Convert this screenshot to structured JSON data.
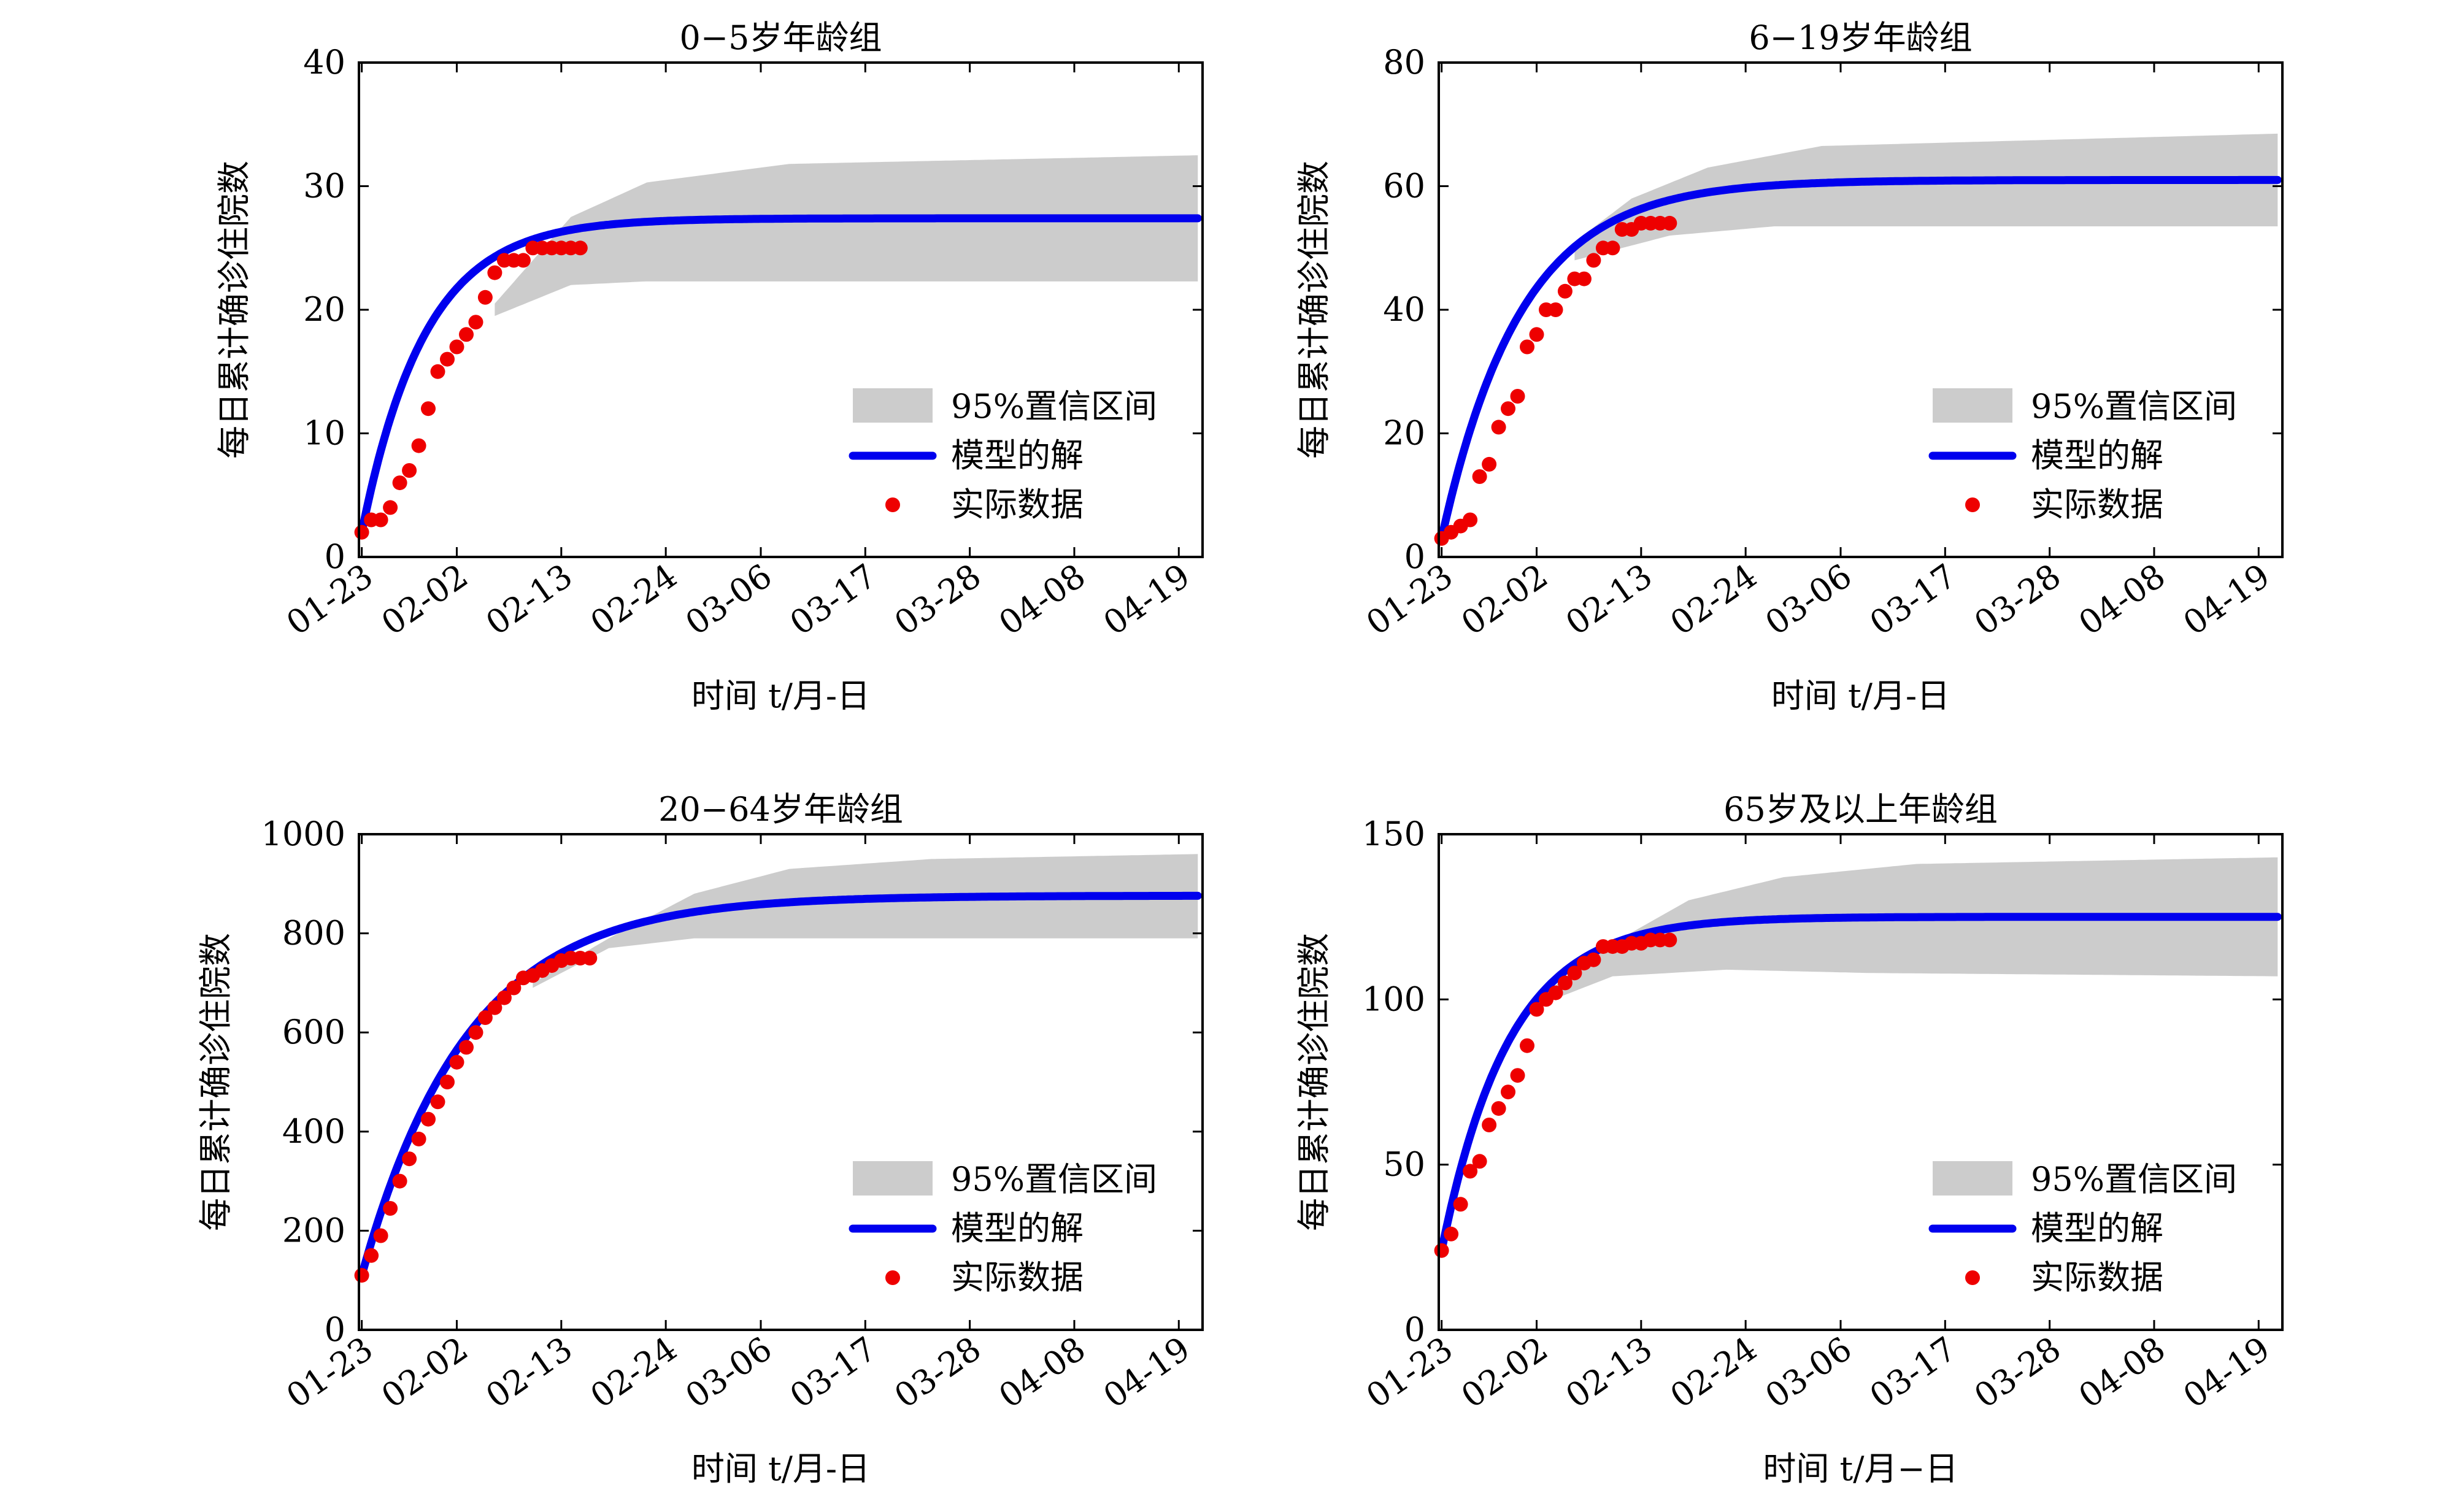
{
  "figure": {
    "legend_labels": {
      "band": "95%置信区间",
      "model": "模型的解",
      "data": "实际数据"
    },
    "colors": {
      "band": "#cccccc",
      "model": "#0000ee",
      "data": "#ee0000",
      "axis": "#000000"
    }
  },
  "chart_data": [
    {
      "type": "line",
      "title": "0−5岁年龄组",
      "xlabel": "时间 t/月-日",
      "ylabel": "每日累计确诊住院数",
      "x_tick_labels": [
        "01-23",
        "02-02",
        "02-13",
        "02-24",
        "03-06",
        "03-17",
        "03-28",
        "04-08",
        "04-19"
      ],
      "x_tick_days": [
        0,
        10,
        21,
        32,
        42,
        53,
        64,
        75,
        86
      ],
      "x_range_days": [
        -0.3,
        88.5
      ],
      "y_ticks": [
        0,
        10,
        20,
        30,
        40
      ],
      "ylim": [
        0,
        40
      ],
      "legend_position": "lower-right",
      "model": {
        "start": 2.0,
        "final": 27.4,
        "k": 0.15,
        "day_end": 88.0
      },
      "band": {
        "day_start": 14.0,
        "lower": [
          [
            14,
            19.5
          ],
          [
            22,
            22.0
          ],
          [
            30,
            22.3
          ],
          [
            88,
            22.3
          ]
        ],
        "upper": [
          [
            14,
            20.5
          ],
          [
            22,
            27.5
          ],
          [
            30,
            30.3
          ],
          [
            45,
            31.8
          ],
          [
            88,
            32.5
          ]
        ]
      },
      "observed": {
        "days": [
          0,
          1,
          2,
          3,
          4,
          5,
          6,
          7,
          8,
          9,
          10,
          11,
          12,
          13,
          14,
          15,
          16,
          17,
          18,
          19,
          20,
          21,
          22,
          23
        ],
        "values": [
          2,
          3,
          3,
          4,
          6,
          7,
          9,
          12,
          15,
          16,
          17,
          18,
          19,
          21,
          23,
          24,
          24,
          24,
          25,
          25,
          25,
          25,
          25,
          25
        ]
      }
    },
    {
      "type": "line",
      "title": "6−19岁年龄组",
      "xlabel": "时间 t/月-日",
      "ylabel": "每日累计确诊住院数",
      "x_tick_labels": [
        "01-23",
        "02-02",
        "02-13",
        "02-24",
        "03-06",
        "03-17",
        "03-28",
        "04-08",
        "04-19"
      ],
      "x_tick_days": [
        0,
        10,
        21,
        32,
        42,
        53,
        64,
        75,
        86
      ],
      "x_range_days": [
        -0.3,
        88.5
      ],
      "y_ticks": [
        0,
        20,
        40,
        60,
        80
      ],
      "ylim": [
        0,
        80
      ],
      "legend_position": "lower-right",
      "model": {
        "start": 3.0,
        "final": 61.0,
        "k": 0.12,
        "day_end": 88.0
      },
      "band": {
        "day_start": 14.0,
        "lower": [
          [
            14,
            48.0
          ],
          [
            24,
            52.0
          ],
          [
            35,
            53.5
          ],
          [
            88,
            53.5
          ]
        ],
        "upper": [
          [
            14,
            51.0
          ],
          [
            20,
            58.0
          ],
          [
            28,
            63.0
          ],
          [
            40,
            66.5
          ],
          [
            88,
            68.5
          ]
        ]
      },
      "observed": {
        "days": [
          0,
          1,
          2,
          3,
          4,
          5,
          6,
          7,
          8,
          9,
          10,
          11,
          12,
          13,
          14,
          15,
          16,
          17,
          18,
          19,
          20,
          21,
          22,
          23,
          24
        ],
        "values": [
          3,
          4,
          5,
          6,
          13,
          15,
          21,
          24,
          26,
          34,
          36,
          40,
          40,
          43,
          45,
          45,
          48,
          50,
          50,
          53,
          53,
          54,
          54,
          54,
          54
        ]
      }
    },
    {
      "type": "line",
      "title": "20−64岁年龄组",
      "xlabel": "时间 t/月-日",
      "ylabel": "每日累计确诊住院数",
      "x_tick_labels": [
        "01-23",
        "02-02",
        "02-13",
        "02-24",
        "03-06",
        "03-17",
        "03-28",
        "04-08",
        "04-19"
      ],
      "x_tick_days": [
        0,
        10,
        21,
        32,
        42,
        53,
        64,
        75,
        86
      ],
      "x_range_days": [
        -0.3,
        88.5
      ],
      "y_ticks": [
        0,
        200,
        400,
        600,
        800,
        1000
      ],
      "ylim": [
        0,
        1000
      ],
      "legend_position": "lower-right",
      "model": {
        "start": 110.0,
        "final": 876.0,
        "k": 0.09,
        "day_end": 88.0
      },
      "band": {
        "day_start": 18.0,
        "lower": [
          [
            18,
            690
          ],
          [
            26,
            770
          ],
          [
            35,
            790
          ],
          [
            88,
            790
          ]
        ],
        "upper": [
          [
            18,
            700
          ],
          [
            26,
            790
          ],
          [
            35,
            880
          ],
          [
            45,
            930
          ],
          [
            60,
            950
          ],
          [
            88,
            960
          ]
        ]
      },
      "observed": {
        "days": [
          0,
          1,
          2,
          3,
          4,
          5,
          6,
          7,
          8,
          9,
          10,
          11,
          12,
          13,
          14,
          15,
          16,
          17,
          18,
          19,
          20,
          21,
          22,
          23,
          24
        ],
        "values": [
          110,
          150,
          190,
          245,
          300,
          345,
          385,
          425,
          460,
          500,
          540,
          570,
          600,
          630,
          650,
          670,
          690,
          710,
          715,
          725,
          735,
          745,
          750,
          750,
          750
        ]
      }
    },
    {
      "type": "line",
      "title": "65岁及以上年龄组",
      "xlabel": "时间 t/月−日",
      "ylabel": "每日累计确诊住院数",
      "x_tick_labels": [
        "01-23",
        "02-02",
        "02-13",
        "02-24",
        "03-06",
        "03-17",
        "03-28",
        "04-08",
        "04-19"
      ],
      "x_tick_days": [
        0,
        10,
        21,
        32,
        42,
        53,
        64,
        75,
        86
      ],
      "x_range_days": [
        -0.3,
        88.5
      ],
      "y_ticks": [
        0,
        50,
        100,
        150
      ],
      "ylim": [
        0,
        150
      ],
      "legend_position": "lower-right",
      "model": {
        "start": 24.0,
        "final": 125.0,
        "k": 0.14,
        "day_end": 88.0
      },
      "band": {
        "day_start": 10.0,
        "lower": [
          [
            10,
            98
          ],
          [
            18,
            107
          ],
          [
            30,
            109
          ],
          [
            45,
            108
          ],
          [
            88,
            107
          ]
        ],
        "upper": [
          [
            10,
            100
          ],
          [
            18,
            117
          ],
          [
            26,
            130
          ],
          [
            36,
            137
          ],
          [
            50,
            141
          ],
          [
            88,
            143
          ]
        ]
      },
      "observed": {
        "days": [
          0,
          1,
          2,
          3,
          4,
          5,
          6,
          7,
          8,
          9,
          10,
          11,
          12,
          13,
          14,
          15,
          16,
          17,
          18,
          19,
          20,
          21,
          22,
          23,
          24
        ],
        "values": [
          24,
          29,
          38,
          48,
          51,
          62,
          67,
          72,
          77,
          86,
          97,
          100,
          102,
          105,
          108,
          111,
          112,
          116,
          116,
          116,
          117,
          117,
          118,
          118,
          118
        ]
      }
    }
  ]
}
